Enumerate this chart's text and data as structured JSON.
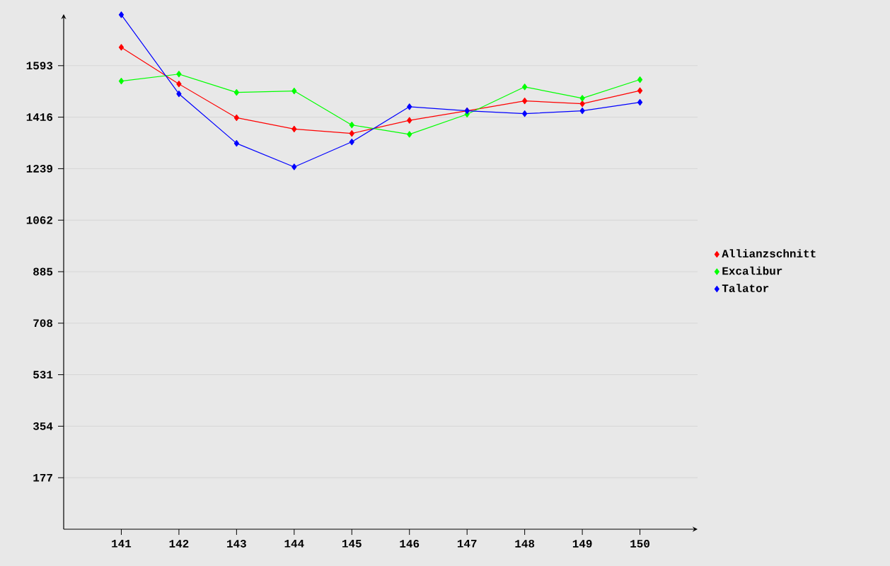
{
  "chart_data": {
    "type": "line",
    "categories": [
      "141",
      "142",
      "143",
      "144",
      "145",
      "146",
      "147",
      "148",
      "149",
      "150"
    ],
    "series": [
      {
        "name": "Allianzschnitt",
        "color": "#ff0000",
        "values": [
          1656,
          1530,
          1414,
          1375,
          1360,
          1405,
          1438,
          1472,
          1462,
          1507
        ]
      },
      {
        "name": "Excalibur",
        "color": "#00ff00",
        "values": [
          1540,
          1564,
          1501,
          1506,
          1389,
          1357,
          1426,
          1520,
          1481,
          1545
        ]
      },
      {
        "name": "Talator",
        "color": "#0000ff",
        "values": [
          1768,
          1496,
          1326,
          1245,
          1331,
          1452,
          1438,
          1428,
          1438,
          1467
        ]
      }
    ],
    "ylim": [
      0,
      1770
    ],
    "yticks": [
      177,
      354,
      531,
      708,
      885,
      1062,
      1239,
      1416,
      1593
    ],
    "grid": "y",
    "legend": "right",
    "marker": "diamond",
    "line_style": "solid"
  }
}
